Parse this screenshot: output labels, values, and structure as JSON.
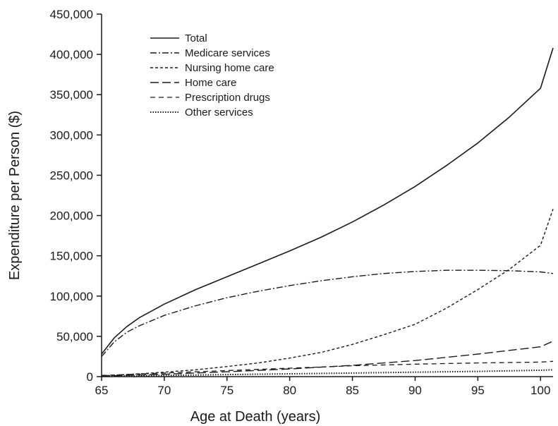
{
  "chart_data": {
    "type": "line",
    "title": "",
    "xlabel": "Age at Death (years)",
    "ylabel": "Expenditure per Person  ($)",
    "xlim": [
      65,
      101
    ],
    "ylim": [
      0,
      450000
    ],
    "x_ticks": [
      65,
      70,
      75,
      80,
      85,
      90,
      95,
      100
    ],
    "x_tick_labels": [
      "65",
      "70",
      "75",
      "80",
      "85",
      "90",
      "95",
      "100"
    ],
    "y_ticks": [
      0,
      50000,
      100000,
      150000,
      200000,
      250000,
      300000,
      350000,
      400000,
      450000
    ],
    "y_tick_labels": [
      "0",
      "50,000",
      "100,000",
      "150,000",
      "200,000",
      "250,000",
      "300,000",
      "350,000",
      "400,000",
      "450,000"
    ],
    "grid": false,
    "legend_position": "top-left",
    "series": [
      {
        "name": "Total",
        "dash": "solid",
        "x": [
          65,
          66,
          67,
          68,
          70,
          72.5,
          75,
          77.5,
          80,
          82.5,
          85,
          87.5,
          90,
          92.5,
          95,
          97.5,
          100,
          101
        ],
        "y": [
          28000,
          48000,
          62000,
          73000,
          90000,
          108000,
          124000,
          140000,
          156000,
          173000,
          192000,
          213000,
          236000,
          262000,
          290000,
          322000,
          358000,
          408000
        ]
      },
      {
        "name": "Medicare services",
        "dash": "dash-dot",
        "x": [
          65,
          66,
          67,
          68,
          70,
          72.5,
          75,
          77.5,
          80,
          82.5,
          85,
          87.5,
          90,
          92.5,
          95,
          97.5,
          100,
          101
        ],
        "y": [
          25000,
          43000,
          55000,
          63000,
          76000,
          88000,
          98000,
          106000,
          113000,
          119000,
          124000,
          128000,
          130500,
          132000,
          132000,
          131500,
          130000,
          128000
        ]
      },
      {
        "name": "Nursing home care",
        "dash": "short-dash",
        "x": [
          65,
          67.5,
          70,
          72.5,
          75,
          77.5,
          80,
          82.5,
          85,
          87.5,
          90,
          92.5,
          95,
          97.5,
          100,
          101
        ],
        "y": [
          1000,
          3000,
          5500,
          8500,
          12500,
          17000,
          23000,
          30000,
          40000,
          52000,
          65000,
          85000,
          108000,
          133000,
          163000,
          208000
        ]
      },
      {
        "name": "Home care",
        "dash": "long-dash",
        "x": [
          65,
          70,
          75,
          80,
          85,
          90,
          95,
          100,
          101
        ],
        "y": [
          500,
          3000,
          6000,
          9500,
          14000,
          20000,
          28000,
          37000,
          44000
        ]
      },
      {
        "name": "Prescription drugs",
        "dash": "medium-dash",
        "x": [
          65,
          70,
          75,
          80,
          85,
          90,
          95,
          100,
          101
        ],
        "y": [
          1500,
          4500,
          7500,
          10500,
          13500,
          15500,
          17000,
          18000,
          19000
        ]
      },
      {
        "name": "Other services",
        "dash": "dotted",
        "x": [
          65,
          70,
          75,
          80,
          85,
          90,
          95,
          100,
          101
        ],
        "y": [
          500,
          1500,
          2500,
          3500,
          4500,
          5500,
          6500,
          8000,
          8500
        ]
      }
    ]
  }
}
